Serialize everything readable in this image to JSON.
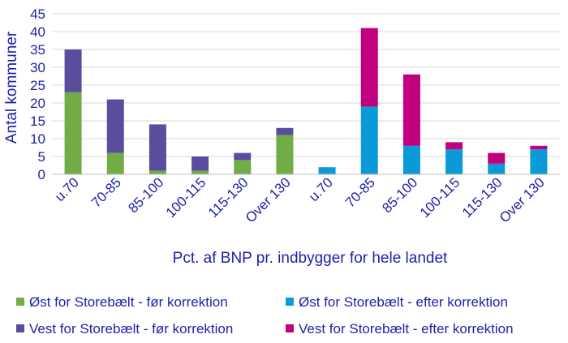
{
  "chart_data": {
    "type": "bar",
    "stacked": true,
    "title": "",
    "xlabel": "Pct. af BNP pr. indbygger for hele landet",
    "ylabel": "Antal kommuner",
    "ylim": [
      0,
      45
    ],
    "yticks": [
      0,
      5,
      10,
      15,
      20,
      25,
      30,
      35,
      40,
      45
    ],
    "grid": true,
    "legend_position": "bottom",
    "categories": [
      "u.70",
      "70-85",
      "85-100",
      "100-115",
      "115-130",
      "Over 130",
      "u.70",
      "70-85",
      "85-100",
      "100-115",
      "115-130",
      "Over 130"
    ],
    "series": [
      {
        "name": "Øst for Storebælt - før korrektion",
        "color": "#70ad47",
        "values": [
          23,
          6,
          1,
          1,
          4,
          11,
          0,
          0,
          0,
          0,
          0,
          0
        ]
      },
      {
        "name": "Vest for Storebælt - før korrektion",
        "color": "#5b4d9e",
        "values": [
          12,
          15,
          13,
          4,
          2,
          2,
          0,
          0,
          0,
          0,
          0,
          0
        ]
      },
      {
        "name": "Øst for Storebælt - efter korrektion",
        "color": "#0a9ad8",
        "values": [
          0,
          0,
          0,
          0,
          0,
          0,
          2,
          19,
          8,
          7,
          3,
          7
        ]
      },
      {
        "name": "Vest for Storebælt - efter korrektion",
        "color": "#c0007f",
        "values": [
          0,
          0,
          0,
          0,
          0,
          0,
          0,
          22,
          20,
          2,
          3,
          1
        ]
      }
    ]
  }
}
